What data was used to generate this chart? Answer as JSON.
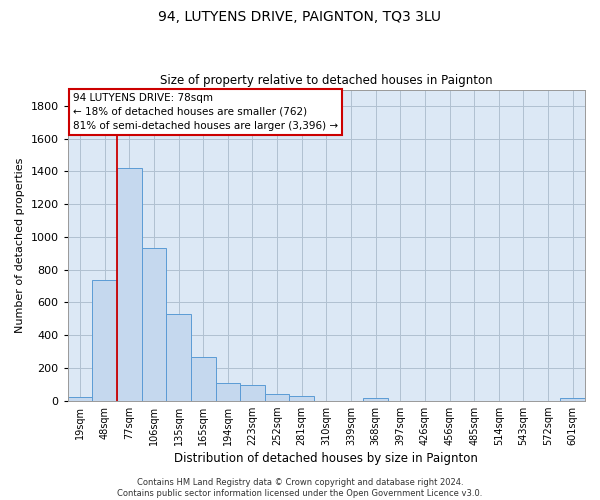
{
  "title": "94, LUTYENS DRIVE, PAIGNTON, TQ3 3LU",
  "subtitle": "Size of property relative to detached houses in Paignton",
  "xlabel": "Distribution of detached houses by size in Paignton",
  "ylabel": "Number of detached properties",
  "bar_color": "#c5d8ee",
  "bar_edge_color": "#5b9bd5",
  "background_color": "#ffffff",
  "plot_bg_color": "#dce8f5",
  "grid_color": "#b0c0d0",
  "categories": [
    "19sqm",
    "48sqm",
    "77sqm",
    "106sqm",
    "135sqm",
    "165sqm",
    "194sqm",
    "223sqm",
    "252sqm",
    "281sqm",
    "310sqm",
    "339sqm",
    "368sqm",
    "397sqm",
    "426sqm",
    "456sqm",
    "485sqm",
    "514sqm",
    "543sqm",
    "572sqm",
    "601sqm"
  ],
  "values": [
    22,
    740,
    1420,
    935,
    530,
    265,
    105,
    93,
    40,
    28,
    0,
    0,
    16,
    0,
    0,
    0,
    0,
    0,
    0,
    0,
    14
  ],
  "ylim": [
    0,
    1900
  ],
  "yticks": [
    0,
    200,
    400,
    600,
    800,
    1000,
    1200,
    1400,
    1600,
    1800
  ],
  "vline_color": "#cc0000",
  "vline_bar_index": 2,
  "annotation_line1": "94 LUTYENS DRIVE: 78sqm",
  "annotation_line2": "← 18% of detached houses are smaller (762)",
  "annotation_line3": "81% of semi-detached houses are larger (3,396) →",
  "annotation_box_color": "#ffffff",
  "annotation_box_edge": "#cc0000",
  "footer_text": "Contains HM Land Registry data © Crown copyright and database right 2024.\nContains public sector information licensed under the Open Government Licence v3.0.",
  "figsize": [
    6.0,
    5.0
  ],
  "dpi": 100
}
